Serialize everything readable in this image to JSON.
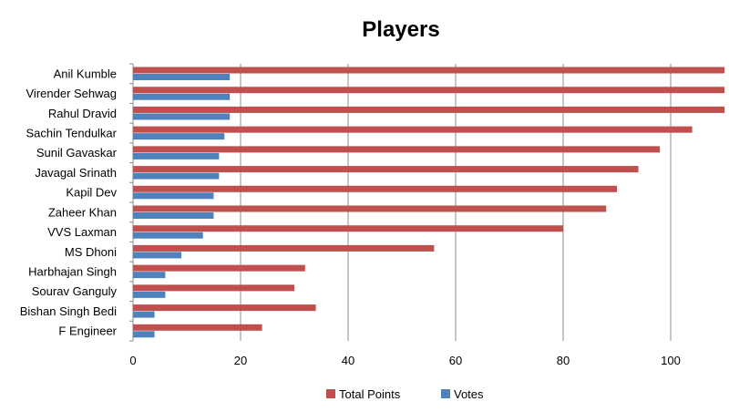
{
  "chart_data": {
    "type": "bar",
    "orientation": "horizontal",
    "title": "Players",
    "xlabel": "",
    "ylabel": "",
    "xlim": [
      0,
      110
    ],
    "x_ticks": [
      0,
      20,
      40,
      60,
      80,
      100
    ],
    "grid": true,
    "legend_position": "bottom",
    "categories": [
      "Anil Kumble",
      "Virender Sehwag",
      "Rahul Dravid",
      "Sachin Tendulkar",
      "Sunil Gavaskar",
      "Javagal Srinath",
      "Kapil Dev",
      "Zaheer Khan",
      "VVS Laxman",
      "MS Dhoni",
      "Harbhajan Singh",
      "Sourav Ganguly",
      "Bishan Singh Bedi",
      "F Engineer"
    ],
    "series": [
      {
        "name": "Total Points",
        "color": "#c0504d",
        "values": [
          110,
          110,
          110,
          104,
          98,
          94,
          90,
          88,
          80,
          56,
          32,
          30,
          34,
          24
        ]
      },
      {
        "name": "Votes",
        "color": "#4f81bd",
        "values": [
          18,
          18,
          18,
          17,
          16,
          16,
          15,
          15,
          13,
          9,
          6,
          6,
          4,
          4
        ]
      }
    ]
  }
}
